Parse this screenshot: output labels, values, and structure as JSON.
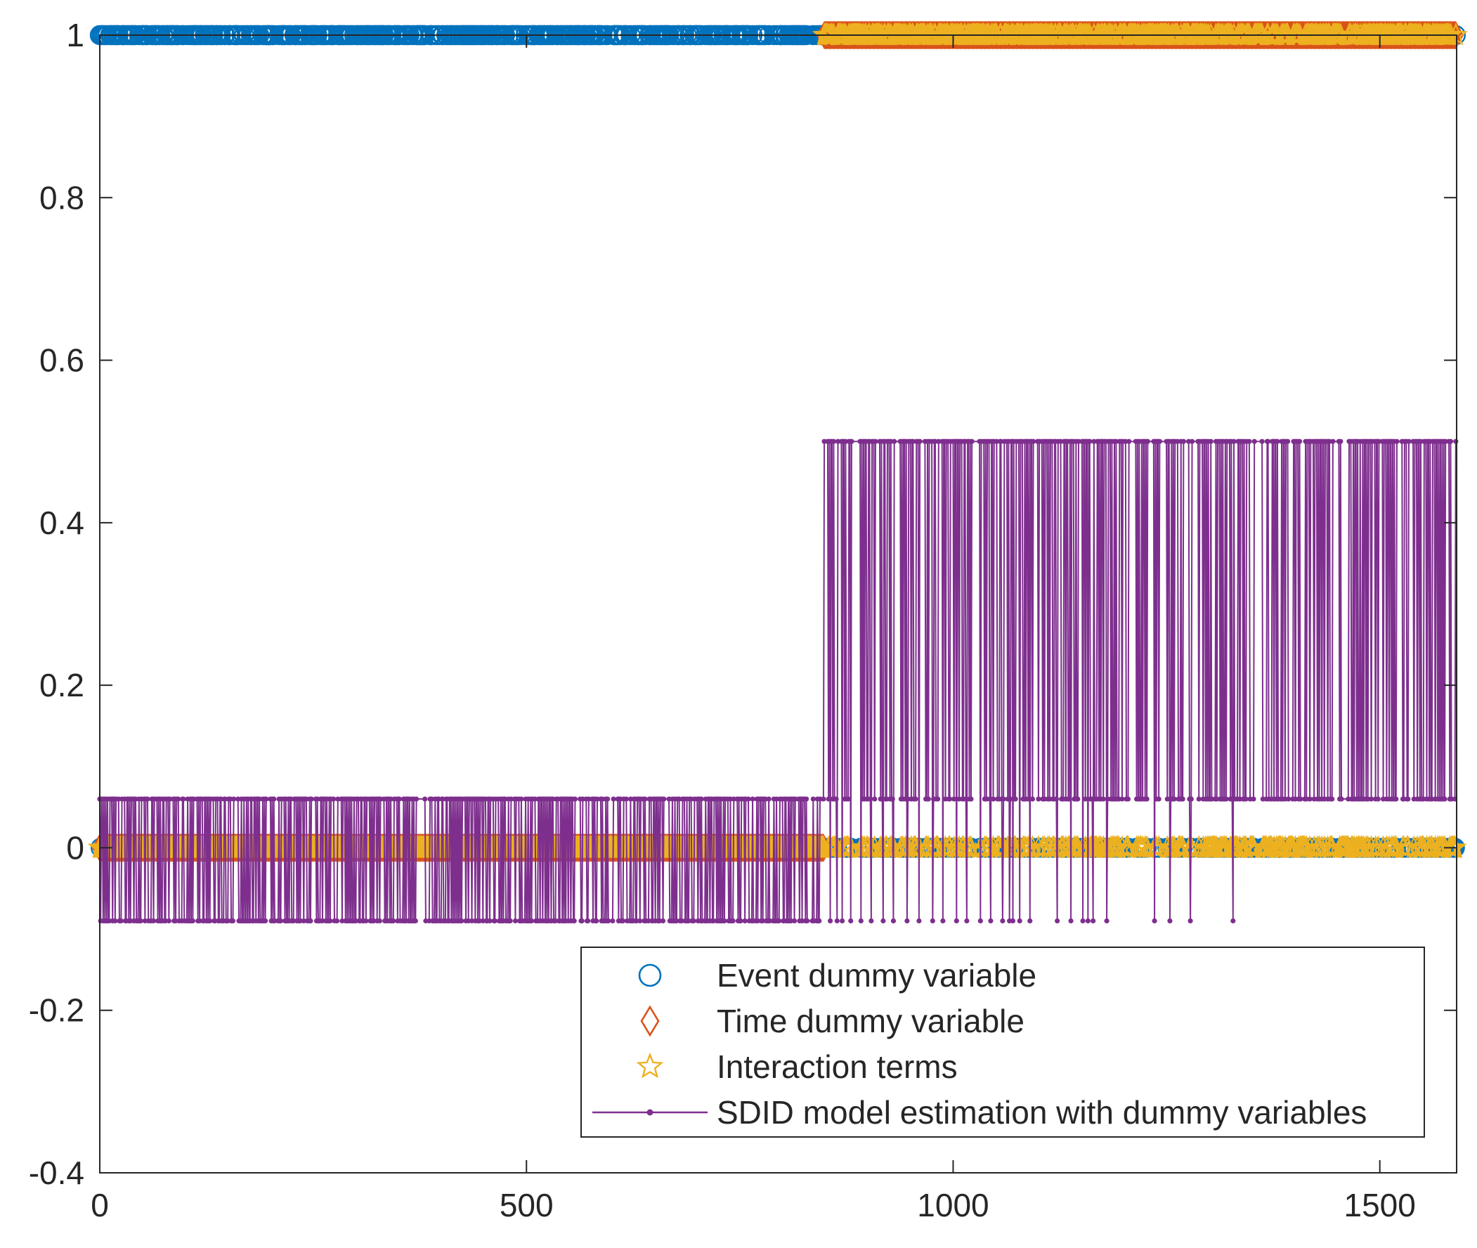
{
  "chart_data": {
    "type": "line",
    "title": "",
    "xlabel": "",
    "ylabel": "",
    "xlim": [
      0,
      1590
    ],
    "ylim": [
      -0.4,
      1
    ],
    "xticks": [
      0,
      500,
      1000,
      1500
    ],
    "xtick_labels": [
      "0",
      "500",
      "1000",
      "1500"
    ],
    "yticks": [
      -0.4,
      -0.2,
      0,
      0.2,
      0.4,
      0.6,
      0.8,
      1
    ],
    "ytick_labels": [
      "-0.4",
      "-0.2",
      "0",
      "0.2",
      "0.4",
      "0.6",
      "0.8",
      "1"
    ],
    "n_observations": 1590,
    "treatment_start": 849,
    "series": [
      {
        "name": "Event dummy variable",
        "marker": "circle",
        "color": "#0072BD",
        "values": "binary 0/1 per observation; pattern mirrors the SDID series (1 where the SDID estimate is high)"
      },
      {
        "name": "Time dummy variable",
        "marker": "diamond",
        "color": "#D95319",
        "values": "0 for observations before 849, 1 for observations 849 to 1590"
      },
      {
        "name": "Interaction terms",
        "marker": "star",
        "color": "#EDB120",
        "values": "product of event and time dummies; 1 only after 849 where the event dummy is 1"
      },
      {
        "name": "SDID model estimation with dummy variables",
        "marker": "point-line",
        "color": "#7E2F8E",
        "levels": {
          "pre_period_low": -0.09,
          "pre_period_high": 0.06,
          "post_period_low": 0.06,
          "post_period_high": 0.5
        },
        "post_period_dips_to": -0.09,
        "post_period_dip_positions": [
          856,
          864,
          870,
          880,
          892,
          904,
          918,
          930,
          946,
          960,
          976,
          988,
          1004,
          1016,
          1032,
          1044,
          1058,
          1066,
          1070,
          1078,
          1090,
          1122,
          1138,
          1152,
          1158,
          1164,
          1180,
          1236,
          1254,
          1278,
          1328
        ]
      }
    ],
    "legend": {
      "position": "bottom-right",
      "entries": [
        "Event dummy variable",
        "Time dummy variable",
        "Interaction terms",
        "SDID model estimation with dummy variables"
      ]
    }
  },
  "colors": {
    "event": "#0072BD",
    "time": "#D95319",
    "interaction": "#EDB120",
    "sdid": "#7E2F8E",
    "axis": "#262626"
  }
}
